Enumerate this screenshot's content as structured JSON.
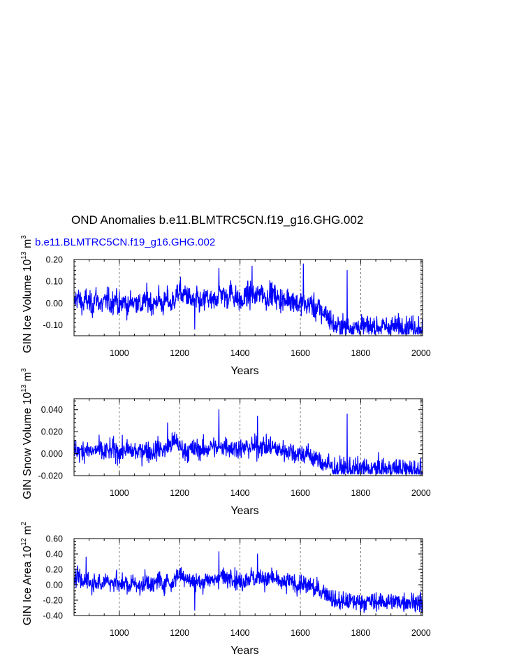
{
  "title": "OND Anomalies b.e11.BLMTRC5CN.f19_g16.GHG.002",
  "case_label": "b.e11.BLMTRC5CN.f19_g16.GHG.002",
  "colors": {
    "series": "#0000ff",
    "axes": "#000000",
    "grid": "#555555"
  },
  "chart_data": [
    {
      "type": "line",
      "ylabel": "GIN Ice Volume",
      "yunit_exp": "13",
      "yunit_base": "10",
      "yunit_tail": " m",
      "yunit_pow": "3",
      "xlabel": "Years",
      "xlim": [
        850,
        2005
      ],
      "ylim": [
        -0.15,
        0.2
      ],
      "xticks": [
        1000,
        1200,
        1400,
        1600,
        1800,
        2000
      ],
      "xtick_labels": [
        "1000",
        "1200",
        "1400",
        "1600",
        "1800",
        "2000"
      ],
      "yticks": [
        0.2,
        0.1,
        0.0,
        -0.1
      ],
      "ytick_labels": [
        "0.20",
        "0.10",
        "0.00",
        "-0.10"
      ],
      "grid": "vertical dashed at major x ticks",
      "series": [
        {
          "values_by_decade": [
            0.0,
            0.03,
            0.01,
            -0.01,
            0.02,
            0.0,
            -0.02,
            0.03,
            0.01,
            -0.01,
            0.0,
            0.02,
            -0.01,
            0.01,
            0.03,
            -0.02,
            0.0,
            0.01,
            -0.03,
            0.02,
            0.0,
            0.01,
            -0.02,
            0.0,
            0.02,
            0.01,
            -0.01,
            0.0,
            0.03,
            -0.01,
            0.0,
            0.02,
            -0.01,
            0.01,
            0.04,
            0.06,
            0.03,
            0.05,
            0.02,
            0.01,
            0.0,
            0.02,
            -0.01,
            0.01,
            0.03,
            0.01,
            0.0,
            0.02,
            0.04,
            0.05,
            0.03,
            0.02,
            0.06,
            0.03,
            0.02,
            0.01,
            0.0,
            0.04,
            0.03,
            0.05,
            0.02,
            0.04,
            0.06,
            0.03,
            0.02,
            0.05,
            0.04,
            0.03,
            0.01,
            0.02,
            0.0,
            0.03,
            0.01,
            0.02,
            -0.01,
            0.0,
            0.01,
            -0.02,
            0.0,
            -0.01,
            -0.03,
            -0.02,
            -0.05,
            -0.04,
            -0.06,
            -0.08,
            -0.1,
            -0.11
          ],
          "extremes": [
            [
              1330,
              0.16
            ],
            [
              1440,
              0.17
            ],
            [
              1610,
              0.18
            ],
            [
              1755,
              0.15
            ],
            [
              1250,
              -0.12
            ],
            [
              2003,
              -0.13
            ]
          ]
        }
      ]
    },
    {
      "type": "line",
      "ylabel": "GIN Snow Volume",
      "yunit_exp": "13",
      "yunit_base": "10",
      "yunit_tail": " m",
      "yunit_pow": "3",
      "xlabel": "Years",
      "xlim": [
        850,
        2005
      ],
      "ylim": [
        -0.02,
        0.05
      ],
      "xticks": [
        1000,
        1200,
        1400,
        1600,
        1800,
        2000
      ],
      "xtick_labels": [
        "1000",
        "1200",
        "1400",
        "1600",
        "1800",
        "2000"
      ],
      "yticks": [
        0.04,
        0.02,
        0.0,
        -0.02
      ],
      "ytick_labels": [
        "0.040",
        "0.020",
        "0.000",
        "-0.020"
      ],
      "grid": "vertical dashed at major x ticks",
      "series": [
        {
          "values_by_decade": [
            0.002,
            0.004,
            0.001,
            0.003,
            0.005,
            0.002,
            0.001,
            0.003,
            0.004,
            0.002,
            0.0,
            0.003,
            0.002,
            0.004,
            0.003,
            0.001,
            0.002,
            0.004,
            0.003,
            0.002,
            0.003,
            0.001,
            0.002,
            0.004,
            0.003,
            0.002,
            0.001,
            0.003,
            0.005,
            0.004,
            0.003,
            0.006,
            0.008,
            0.01,
            0.012,
            0.006,
            0.004,
            0.003,
            0.002,
            0.004,
            0.003,
            0.005,
            0.004,
            0.003,
            0.004,
            0.006,
            0.007,
            0.005,
            0.004,
            0.006,
            0.008,
            0.007,
            0.005,
            0.004,
            0.006,
            0.005,
            0.004,
            0.006,
            0.005,
            0.007,
            0.006,
            0.005,
            0.008,
            0.006,
            0.005,
            0.007,
            0.006,
            0.004,
            0.003,
            0.004,
            0.002,
            0.003,
            0.002,
            0.001,
            0.0,
            0.001,
            -0.001,
            0.0,
            -0.002,
            -0.003,
            -0.004,
            -0.006,
            -0.008,
            -0.009,
            -0.01,
            -0.012,
            -0.013,
            -0.014
          ],
          "extremes": [
            [
              1330,
              0.04
            ],
            [
              1458,
              0.034
            ],
            [
              1755,
              0.036
            ],
            [
              1160,
              0.028
            ],
            [
              1995,
              -0.018
            ],
            [
              2003,
              -0.017
            ]
          ]
        }
      ]
    },
    {
      "type": "line",
      "ylabel": "GIN Ice Area",
      "yunit_exp": "12",
      "yunit_base": "10",
      "yunit_tail": " m",
      "yunit_pow": "2",
      "xlabel": "Years",
      "xlim": [
        850,
        2005
      ],
      "ylim": [
        -0.4,
        0.6
      ],
      "xticks": [
        1000,
        1200,
        1400,
        1600,
        1800,
        2000
      ],
      "xtick_labels": [
        "1000",
        "1200",
        "1400",
        "1600",
        "1800",
        "2000"
      ],
      "yticks": [
        0.6,
        0.4,
        0.2,
        0.0,
        -0.2,
        -0.4
      ],
      "ytick_labels": [
        "0.60",
        "0.40",
        "0.20",
        "0.00",
        "-0.20",
        "-0.40"
      ],
      "grid": "vertical dashed at major x ticks",
      "series": [
        {
          "values_by_decade": [
            0.05,
            0.1,
            0.08,
            0.0,
            0.12,
            0.05,
            -0.02,
            0.08,
            0.02,
            -0.03,
            0.04,
            0.1,
            0.0,
            0.05,
            0.08,
            -0.05,
            0.02,
            0.06,
            -0.08,
            0.05,
            0.02,
            0.03,
            -0.06,
            0.01,
            0.05,
            0.04,
            -0.04,
            0.02,
            0.1,
            0.0,
            0.02,
            0.08,
            -0.02,
            0.05,
            0.12,
            0.15,
            0.1,
            0.12,
            0.06,
            0.04,
            0.02,
            0.06,
            0.0,
            0.04,
            0.1,
            0.06,
            0.02,
            0.08,
            0.1,
            0.12,
            0.08,
            0.06,
            0.15,
            0.08,
            0.06,
            0.04,
            0.02,
            0.1,
            0.08,
            0.12,
            0.05,
            0.08,
            0.12,
            0.08,
            0.05,
            0.1,
            0.08,
            0.06,
            0.02,
            0.04,
            0.0,
            0.06,
            0.02,
            0.04,
            -0.02,
            0.0,
            0.02,
            -0.04,
            0.0,
            -0.02,
            -0.08,
            -0.05,
            -0.1,
            -0.08,
            -0.12,
            -0.15,
            -0.2,
            -0.22
          ],
          "extremes": [
            [
              1330,
              0.43
            ],
            [
              1458,
              0.4
            ],
            [
              890,
              0.36
            ],
            [
              1250,
              -0.33
            ],
            [
              1995,
              -0.35
            ],
            [
              2003,
              -0.36
            ]
          ]
        }
      ]
    }
  ]
}
